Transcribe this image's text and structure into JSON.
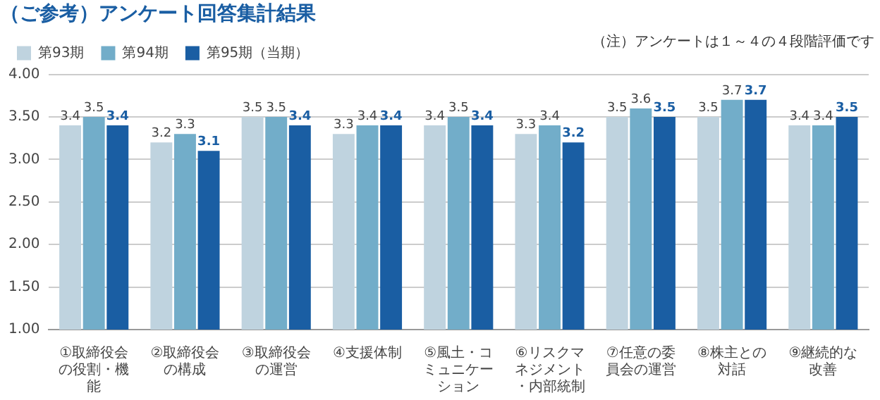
{
  "chart_data": {
    "type": "bar",
    "title": "（ご参考）アンケート回答集計結果",
    "annotations": [
      "（注）アンケートは１～４の４段階評価です"
    ],
    "categories": [
      "①取締役会の役割・機能",
      "②取締役会の構成",
      "③取締役会の運営",
      "④支援体制",
      "⑤風土・コミュニケーション",
      "⑥リスクマネジメント・内部統制",
      "⑦任意の委員会の運営",
      "⑧株主との対話",
      "⑨継続的な改善"
    ],
    "series": [
      {
        "name": "第93期",
        "color": "#bfd3df",
        "values": [
          3.4,
          3.2,
          3.5,
          3.3,
          3.4,
          3.3,
          3.5,
          3.5,
          3.4
        ]
      },
      {
        "name": "第94期",
        "color": "#72adc9",
        "values": [
          3.5,
          3.3,
          3.5,
          3.4,
          3.5,
          3.4,
          3.6,
          3.7,
          3.4
        ]
      },
      {
        "name": "第95期（当期）",
        "color": "#1a5ea3",
        "values": [
          3.4,
          3.1,
          3.4,
          3.4,
          3.4,
          3.2,
          3.5,
          3.7,
          3.5
        ]
      }
    ],
    "ylim": [
      1,
      4
    ],
    "yticks": [
      {
        "value": 1,
        "label": "1.00"
      },
      {
        "value": 1.5,
        "label": "1.50"
      },
      {
        "value": 2,
        "label": "2.00"
      },
      {
        "value": 2.5,
        "label": "2.50"
      },
      {
        "value": 3,
        "label": "3.00"
      },
      {
        "value": 3.5,
        "label": "3.50"
      },
      {
        "value": 4,
        "label": "4.00"
      }
    ],
    "grid": "y",
    "legend": "top left",
    "data_labels": true
  }
}
